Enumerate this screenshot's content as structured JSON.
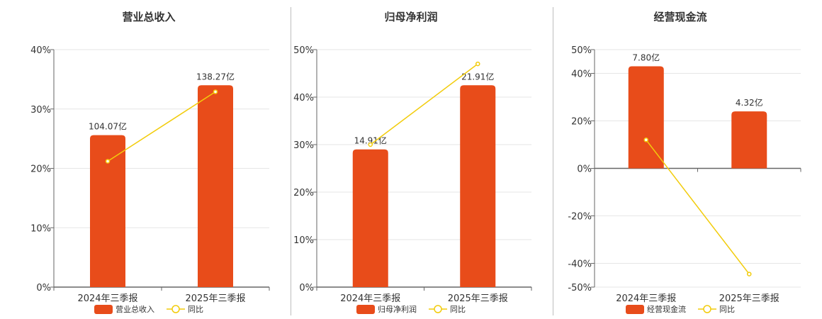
{
  "chart_data": [
    {
      "type": "bar",
      "title": "营业总收入",
      "categories": [
        "2024年三季报",
        "2025年三季报"
      ],
      "series": [
        {
          "name": "营业总收入",
          "kind": "bar",
          "values": [
            25.6,
            34.0
          ],
          "labels": [
            "104.07亿",
            "138.27亿"
          ]
        },
        {
          "name": "同比",
          "kind": "line",
          "values": [
            21.2,
            32.9
          ]
        }
      ],
      "yticks": [
        "0%",
        "10%",
        "20%",
        "30%",
        "40%"
      ],
      "ylim": [
        0,
        40
      ],
      "grid": true,
      "legend_position": "bottom",
      "colors": {
        "bar": "#E84C1A",
        "line": "#F2CC0C"
      }
    },
    {
      "type": "bar",
      "title": "归母净利润",
      "categories": [
        "2024年三季报",
        "2025年三季报"
      ],
      "series": [
        {
          "name": "归母净利润",
          "kind": "bar",
          "values": [
            29.0,
            42.5
          ],
          "labels": [
            "14.91亿",
            "21.91亿"
          ]
        },
        {
          "name": "同比",
          "kind": "line",
          "values": [
            30.0,
            47.0
          ]
        }
      ],
      "yticks": [
        "0%",
        "10%",
        "20%",
        "30%",
        "40%",
        "50%"
      ],
      "ylim": [
        0,
        50
      ],
      "grid": true,
      "legend_position": "bottom",
      "colors": {
        "bar": "#E84C1A",
        "line": "#F2CC0C"
      }
    },
    {
      "type": "bar",
      "title": "经营现金流",
      "categories": [
        "2024年三季报",
        "2025年三季报"
      ],
      "series": [
        {
          "name": "经营现金流",
          "kind": "bar",
          "values": [
            43.0,
            24.0
          ],
          "labels": [
            "7.80亿",
            "4.32亿"
          ]
        },
        {
          "name": "同比",
          "kind": "line",
          "values": [
            12.0,
            -44.5
          ]
        }
      ],
      "yticks": [
        "-50%",
        "-40%",
        "-20%",
        "0%",
        "20%",
        "40%",
        "50%"
      ],
      "ytick_values": [
        -50,
        -40,
        -20,
        0,
        20,
        40,
        50
      ],
      "ylim": [
        -50,
        50
      ],
      "grid": true,
      "legend_position": "bottom",
      "colors": {
        "bar": "#E84C1A",
        "line": "#F2CC0C"
      }
    }
  ]
}
